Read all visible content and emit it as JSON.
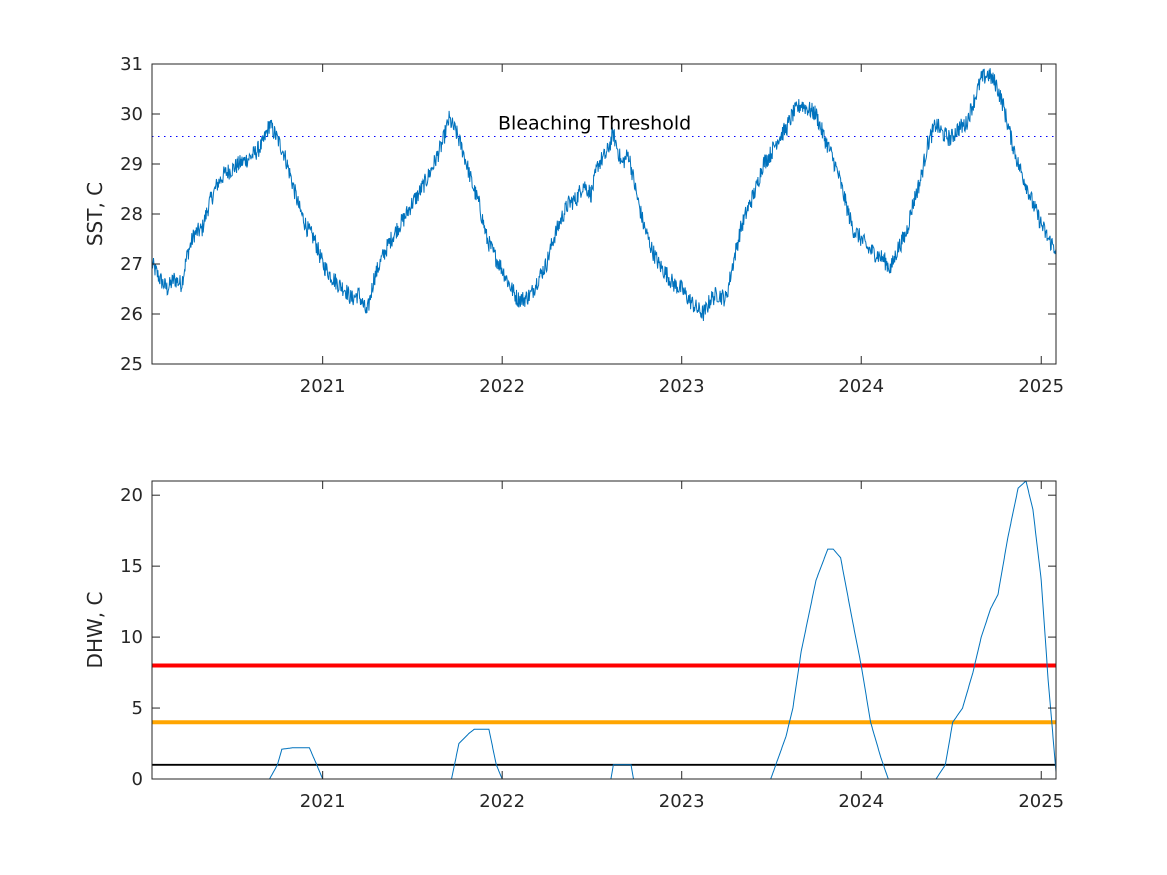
{
  "chart_data": [
    {
      "type": "line",
      "ylabel": "SST, C",
      "xlim": [
        "2020-01-20",
        "2025-01-31"
      ],
      "ylim": [
        25,
        31
      ],
      "xticks": [
        "2021",
        "2022",
        "2023",
        "2024",
        "2025"
      ],
      "yticks": [
        "25",
        "26",
        "27",
        "28",
        "29",
        "30",
        "31"
      ],
      "grid": false,
      "series": [
        {
          "color": "#0072bd",
          "points": [
            [
              "2020-01-20",
              27.0
            ],
            [
              "2020-02-05",
              26.7
            ],
            [
              "2020-02-20",
              26.5
            ],
            [
              "2020-03-05",
              26.7
            ],
            [
              "2020-03-20",
              26.6
            ],
            [
              "2020-04-01",
              27.2
            ],
            [
              "2020-04-15",
              27.6
            ],
            [
              "2020-05-01",
              27.7
            ],
            [
              "2020-05-15",
              28.2
            ],
            [
              "2020-06-01",
              28.6
            ],
            [
              "2020-06-15",
              28.8
            ],
            [
              "2020-07-01",
              28.9
            ],
            [
              "2020-07-15",
              29.0
            ],
            [
              "2020-08-01",
              29.1
            ],
            [
              "2020-08-15",
              29.2
            ],
            [
              "2020-09-01",
              29.4
            ],
            [
              "2020-09-15",
              29.8
            ],
            [
              "2020-10-01",
              29.5
            ],
            [
              "2020-10-15",
              29.2
            ],
            [
              "2020-11-01",
              28.6
            ],
            [
              "2020-11-15",
              28.1
            ],
            [
              "2020-12-01",
              27.7
            ],
            [
              "2020-12-15",
              27.5
            ],
            [
              "2021-01-01",
              27.0
            ],
            [
              "2021-01-15",
              26.8
            ],
            [
              "2021-02-01",
              26.6
            ],
            [
              "2021-02-15",
              26.5
            ],
            [
              "2021-03-01",
              26.3
            ],
            [
              "2021-03-15",
              26.4
            ],
            [
              "2021-04-01",
              26.0
            ],
            [
              "2021-04-15",
              26.7
            ],
            [
              "2021-05-01",
              27.1
            ],
            [
              "2021-05-15",
              27.4
            ],
            [
              "2021-06-01",
              27.7
            ],
            [
              "2021-06-15",
              27.9
            ],
            [
              "2021-07-01",
              28.2
            ],
            [
              "2021-07-15",
              28.4
            ],
            [
              "2021-08-01",
              28.7
            ],
            [
              "2021-08-15",
              29.0
            ],
            [
              "2021-09-01",
              29.4
            ],
            [
              "2021-09-15",
              29.9
            ],
            [
              "2021-10-01",
              29.6
            ],
            [
              "2021-10-15",
              29.2
            ],
            [
              "2021-11-01",
              28.6
            ],
            [
              "2021-11-15",
              28.2
            ],
            [
              "2021-12-01",
              27.5
            ],
            [
              "2021-12-15",
              27.2
            ],
            [
              "2022-01-01",
              26.9
            ],
            [
              "2022-01-15",
              26.6
            ],
            [
              "2022-02-01",
              26.3
            ],
            [
              "2022-02-15",
              26.3
            ],
            [
              "2022-03-01",
              26.4
            ],
            [
              "2022-03-15",
              26.7
            ],
            [
              "2022-04-01",
              27.0
            ],
            [
              "2022-04-15",
              27.5
            ],
            [
              "2022-05-01",
              27.9
            ],
            [
              "2022-05-15",
              28.2
            ],
            [
              "2022-06-01",
              28.3
            ],
            [
              "2022-06-15",
              28.6
            ],
            [
              "2022-07-01",
              28.4
            ],
            [
              "2022-07-15",
              29.0
            ],
            [
              "2022-08-01",
              29.2
            ],
            [
              "2022-08-15",
              29.6
            ],
            [
              "2022-09-01",
              29.0
            ],
            [
              "2022-09-15",
              29.2
            ],
            [
              "2022-10-01",
              28.4
            ],
            [
              "2022-10-15",
              27.8
            ],
            [
              "2022-11-01",
              27.3
            ],
            [
              "2022-11-15",
              27.0
            ],
            [
              "2022-12-01",
              26.8
            ],
            [
              "2022-12-15",
              26.6
            ],
            [
              "2023-01-01",
              26.5
            ],
            [
              "2023-01-15",
              26.3
            ],
            [
              "2023-02-01",
              26.1
            ],
            [
              "2023-02-15",
              26.0
            ],
            [
              "2023-03-01",
              26.3
            ],
            [
              "2023-03-15",
              26.4
            ],
            [
              "2023-04-01",
              26.3
            ],
            [
              "2023-04-15",
              27.0
            ],
            [
              "2023-05-01",
              27.7
            ],
            [
              "2023-05-15",
              28.1
            ],
            [
              "2023-06-01",
              28.5
            ],
            [
              "2023-06-15",
              29.0
            ],
            [
              "2023-07-01",
              29.2
            ],
            [
              "2023-07-15",
              29.5
            ],
            [
              "2023-08-01",
              29.7
            ],
            [
              "2023-08-15",
              30.0
            ],
            [
              "2023-09-01",
              30.2
            ],
            [
              "2023-09-15",
              30.1
            ],
            [
              "2023-10-01",
              30.0
            ],
            [
              "2023-10-15",
              29.6
            ],
            [
              "2023-11-01",
              29.2
            ],
            [
              "2023-11-15",
              28.8
            ],
            [
              "2023-12-01",
              28.2
            ],
            [
              "2023-12-15",
              27.7
            ],
            [
              "2024-01-01",
              27.5
            ],
            [
              "2024-01-15",
              27.3
            ],
            [
              "2024-02-01",
              27.2
            ],
            [
              "2024-02-15",
              27.1
            ],
            [
              "2024-03-01",
              26.9
            ],
            [
              "2024-03-15",
              27.3
            ],
            [
              "2024-04-01",
              27.6
            ],
            [
              "2024-04-15",
              28.2
            ],
            [
              "2024-05-01",
              28.7
            ],
            [
              "2024-05-15",
              29.4
            ],
            [
              "2024-06-01",
              29.8
            ],
            [
              "2024-06-15",
              29.6
            ],
            [
              "2024-07-01",
              29.5
            ],
            [
              "2024-07-15",
              29.7
            ],
            [
              "2024-08-01",
              29.8
            ],
            [
              "2024-08-15",
              30.2
            ],
            [
              "2024-09-01",
              30.7
            ],
            [
              "2024-09-15",
              30.8
            ],
            [
              "2024-10-01",
              30.6
            ],
            [
              "2024-10-15",
              30.2
            ],
            [
              "2024-11-01",
              29.5
            ],
            [
              "2024-11-15",
              29.0
            ],
            [
              "2024-12-01",
              28.6
            ],
            [
              "2024-12-15",
              28.2
            ],
            [
              "2025-01-01",
              27.8
            ],
            [
              "2025-01-15",
              27.5
            ],
            [
              "2025-01-31",
              27.3
            ]
          ]
        }
      ],
      "threshold": {
        "value": 29.55,
        "label": "Bleaching Threshold",
        "color": "#0000ff",
        "style": "dotted"
      }
    },
    {
      "type": "line",
      "ylabel": "DHW, C",
      "xlim": [
        "2020-01-20",
        "2025-01-31"
      ],
      "ylim": [
        0,
        21
      ],
      "xticks": [
        "2021",
        "2022",
        "2023",
        "2024",
        "2025"
      ],
      "yticks": [
        "0",
        "5",
        "10",
        "15",
        "20"
      ],
      "grid": false,
      "series": [
        {
          "color": "#0072bd",
          "points": [
            [
              "2020-01-20",
              0
            ],
            [
              "2020-09-15",
              0
            ],
            [
              "2020-10-01",
              1.0
            ],
            [
              "2020-10-10",
              2.1
            ],
            [
              "2020-11-01",
              2.2
            ],
            [
              "2020-12-05",
              2.2
            ],
            [
              "2020-12-20",
              1.0
            ],
            [
              "2021-01-01",
              0
            ],
            [
              "2021-09-20",
              0
            ],
            [
              "2021-10-05",
              2.5
            ],
            [
              "2021-10-25",
              3.2
            ],
            [
              "2021-11-05",
              3.5
            ],
            [
              "2021-12-05",
              3.5
            ],
            [
              "2021-12-20",
              1.0
            ],
            [
              "2022-01-01",
              0
            ],
            [
              "2022-08-10",
              0
            ],
            [
              "2022-08-15",
              1.0
            ],
            [
              "2022-09-20",
              1.0
            ],
            [
              "2022-09-25",
              0
            ],
            [
              "2023-07-01",
              0
            ],
            [
              "2023-08-01",
              3.0
            ],
            [
              "2023-08-15",
              5.0
            ],
            [
              "2023-09-01",
              9.0
            ],
            [
              "2023-10-01",
              14.0
            ],
            [
              "2023-10-25",
              16.2
            ],
            [
              "2023-11-05",
              16.2
            ],
            [
              "2023-11-20",
              15.6
            ],
            [
              "2023-12-15",
              11.0
            ],
            [
              "2024-01-01",
              8.0
            ],
            [
              "2024-01-20",
              4.0
            ],
            [
              "2024-02-10",
              1.5
            ],
            [
              "2024-02-25",
              0
            ],
            [
              "2024-06-01",
              0
            ],
            [
              "2024-06-20",
              1.0
            ],
            [
              "2024-07-05",
              4.0
            ],
            [
              "2024-07-25",
              5.0
            ],
            [
              "2024-08-15",
              7.5
            ],
            [
              "2024-09-01",
              10.0
            ],
            [
              "2024-09-20",
              12.0
            ],
            [
              "2024-10-05",
              13.0
            ],
            [
              "2024-10-25",
              17.0
            ],
            [
              "2024-11-15",
              20.5
            ],
            [
              "2024-12-01",
              21.0
            ],
            [
              "2024-12-15",
              19.0
            ],
            [
              "2025-01-01",
              14.0
            ],
            [
              "2025-01-15",
              7.0
            ],
            [
              "2025-01-31",
              0.5
            ]
          ]
        }
      ],
      "reference_lines": [
        {
          "value": 8,
          "color": "#ff0000"
        },
        {
          "value": 4,
          "color": "#ffa500"
        },
        {
          "value": 1,
          "color": "#000000"
        }
      ]
    }
  ]
}
